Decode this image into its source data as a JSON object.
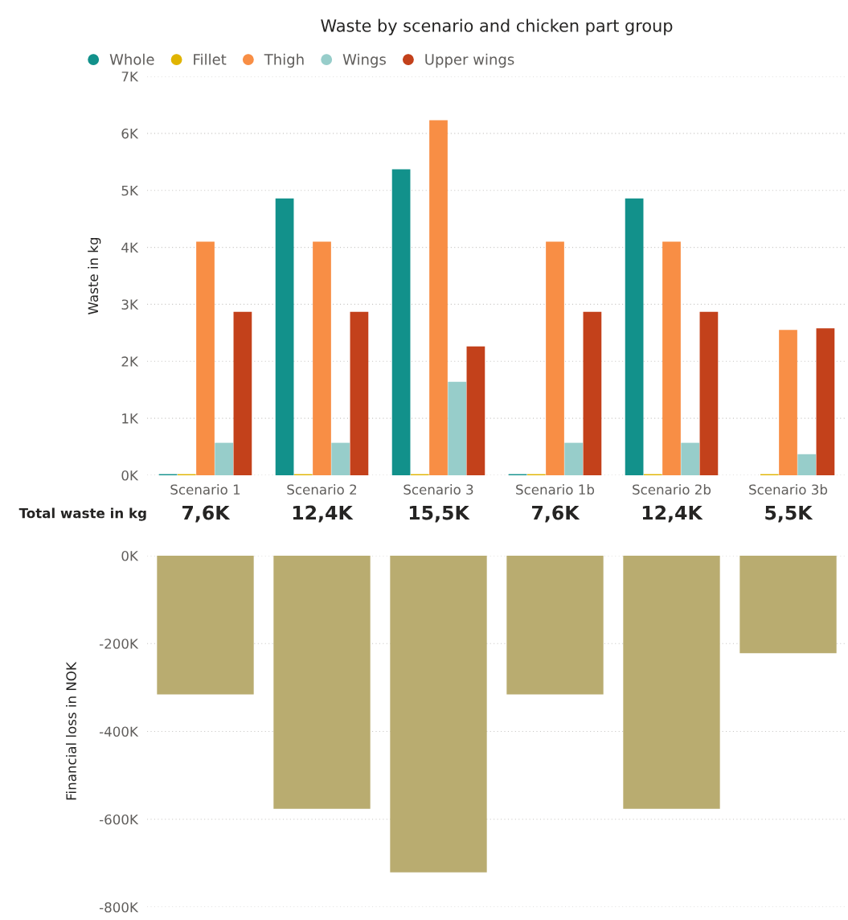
{
  "chart_data": [
    {
      "type": "bar",
      "title": "Waste by scenario and chicken part group",
      "ylabel": "Waste in kg",
      "categories": [
        "Scenario 1",
        "Scenario 2",
        "Scenario 3",
        "Scenario 1b",
        "Scenario 2b",
        "Scenario 3b"
      ],
      "series": [
        {
          "name": "Whole",
          "color": "#12918b",
          "values": [
            20,
            4860,
            5370,
            20,
            4860,
            0
          ]
        },
        {
          "name": "Fillet",
          "color": "#e0b400",
          "values": [
            20,
            20,
            20,
            20,
            20,
            20
          ]
        },
        {
          "name": "Thigh",
          "color": "#f88e45",
          "values": [
            4100,
            4100,
            6230,
            4100,
            4100,
            2550
          ]
        },
        {
          "name": "Wings",
          "color": "#97cdca",
          "values": [
            570,
            570,
            1640,
            570,
            570,
            370
          ]
        },
        {
          "name": "Upper wings",
          "color": "#c3411b",
          "values": [
            2870,
            2870,
            2260,
            2870,
            2870,
            2580
          ]
        }
      ],
      "ylim": [
        0,
        7000
      ],
      "yticks": [
        {
          "value": 0,
          "label": "0K"
        },
        {
          "value": 1000,
          "label": "1K"
        },
        {
          "value": 2000,
          "label": "2K"
        },
        {
          "value": 3000,
          "label": "3K"
        },
        {
          "value": 4000,
          "label": "4K"
        },
        {
          "value": 5000,
          "label": "5K"
        },
        {
          "value": 6000,
          "label": "6K"
        },
        {
          "value": 7000,
          "label": "7K"
        }
      ],
      "grid": "y",
      "legend": "top left"
    },
    {
      "type": "other",
      "title": "Total waste in kg",
      "annotations": [
        "7,6K",
        "12,4K",
        "15,5K",
        "7,6K",
        "12,4K",
        "5,5K"
      ]
    },
    {
      "type": "bar",
      "ylabel": "Financial loss in NOK",
      "categories": [
        null,
        null,
        null,
        null,
        null,
        null
      ],
      "series": [
        {
          "color": "#b9ac70",
          "values": [
            -316000,
            -576000,
            -721000,
            -316000,
            -576000,
            -222000
          ]
        }
      ],
      "ylim": [
        -800000,
        0
      ],
      "yticks": [
        {
          "value": -800000,
          "label": "-800K"
        },
        {
          "value": -600000,
          "label": "-600K"
        },
        {
          "value": -400000,
          "label": "-400K"
        },
        {
          "value": -200000,
          "label": "-200K"
        },
        {
          "value": 0,
          "label": "0K"
        }
      ],
      "grid": "y",
      "tick_labels": "y"
    }
  ]
}
